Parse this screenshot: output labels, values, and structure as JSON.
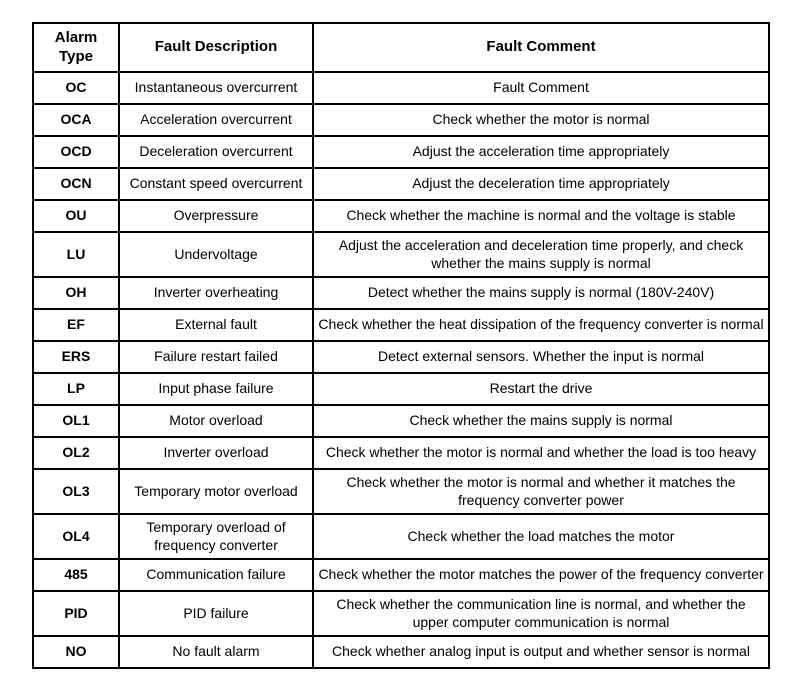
{
  "table": {
    "columns": [
      "Alarm Type",
      "Fault Description",
      "Fault Comment"
    ],
    "rows": [
      {
        "alarm_type": "OC",
        "fault_description": "Instantaneous overcurrent",
        "fault_comment": "Fault Comment"
      },
      {
        "alarm_type": "OCA",
        "fault_description": "Acceleration overcurrent",
        "fault_comment": "Check whether the motor is normal"
      },
      {
        "alarm_type": "OCD",
        "fault_description": "Deceleration overcurrent",
        "fault_comment": "Adjust the acceleration time appropriately"
      },
      {
        "alarm_type": "OCN",
        "fault_description": "Constant speed overcurrent",
        "fault_comment": "Adjust the deceleration time appropriately"
      },
      {
        "alarm_type": "OU",
        "fault_description": "Overpressure",
        "fault_comment": "Check whether the machine is normal and the voltage is stable"
      },
      {
        "alarm_type": "LU",
        "fault_description": "Undervoltage",
        "fault_comment": "Adjust the acceleration and deceleration time properly, and check whether the mains supply is normal"
      },
      {
        "alarm_type": "OH",
        "fault_description": "Inverter overheating",
        "fault_comment": "Detect whether the mains supply is normal (180V-240V)"
      },
      {
        "alarm_type": "EF",
        "fault_description": "External fault",
        "fault_comment": "Check whether the heat dissipation of the frequency converter is normal"
      },
      {
        "alarm_type": "ERS",
        "fault_description": "Failure restart failed",
        "fault_comment": "Detect external sensors. Whether the input is normal"
      },
      {
        "alarm_type": "LP",
        "fault_description": "Input phase failure",
        "fault_comment": "Restart the drive"
      },
      {
        "alarm_type": "OL1",
        "fault_description": "Motor overload",
        "fault_comment": "Check whether the mains supply is normal"
      },
      {
        "alarm_type": "OL2",
        "fault_description": "Inverter overload",
        "fault_comment": "Check whether the motor is normal and whether the load is too heavy"
      },
      {
        "alarm_type": "OL3",
        "fault_description": "Temporary motor overload",
        "fault_comment": "Check whether the motor is normal and whether it matches the frequency converter power"
      },
      {
        "alarm_type": "OL4",
        "fault_description": "Temporary overload of frequency converter",
        "fault_comment": "Check whether the load matches the motor"
      },
      {
        "alarm_type": "485",
        "fault_description": "Communication failure",
        "fault_comment": "Check whether the motor matches the power of the frequency converter"
      },
      {
        "alarm_type": "PID",
        "fault_description": "PID failure",
        "fault_comment": "Check whether the communication line is normal, and whether the upper computer communication is normal"
      },
      {
        "alarm_type": "NO",
        "fault_description": "No fault alarm",
        "fault_comment": "Check whether analog input is output and whether sensor is normal"
      }
    ]
  }
}
